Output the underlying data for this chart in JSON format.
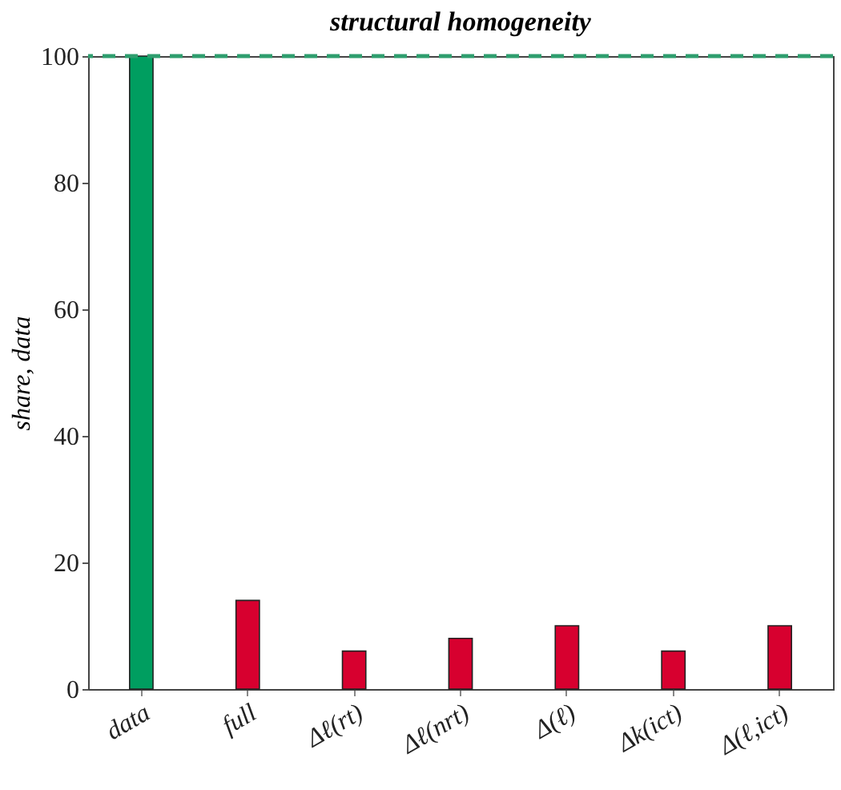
{
  "chart_data": {
    "type": "bar",
    "title": "structural homogeneity",
    "ylabel": "share, data",
    "categories": [
      "data",
      "full",
      "Δℓ(rt)",
      "Δℓ(nrt)",
      "Δ(ℓ)",
      "Δk(ict)",
      "Δ(ℓ,ict)"
    ],
    "values": [
      100,
      14,
      6,
      8,
      10,
      6,
      10
    ],
    "colors": [
      "#009e60",
      "#d7002f",
      "#d7002f",
      "#d7002f",
      "#d7002f",
      "#d7002f",
      "#d7002f"
    ],
    "ylim": [
      0,
      100
    ],
    "yticks": [
      0,
      20,
      40,
      60,
      80,
      100
    ],
    "grid": false,
    "ref_lines": [
      {
        "axis": "y",
        "value": 100,
        "color": "#2e9e6e",
        "line_style": "dashed"
      }
    ]
  }
}
